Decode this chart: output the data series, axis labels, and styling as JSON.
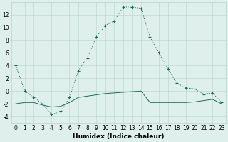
{
  "x": [
    0,
    1,
    2,
    3,
    4,
    5,
    6,
    7,
    8,
    9,
    10,
    11,
    12,
    13,
    14,
    15,
    16,
    17,
    18,
    19,
    20,
    21,
    22,
    23
  ],
  "line1_y": [
    4,
    0,
    -1,
    -2,
    -3.7,
    -3.2,
    -1.0,
    3.2,
    5.2,
    8.5,
    10.3,
    11.0,
    13.2,
    13.2,
    13.0,
    8.5,
    6.0,
    3.5,
    1.2,
    0.5,
    0.3,
    -0.5,
    -0.3,
    -1.8
  ],
  "line2_y": [
    -2.0,
    -1.8,
    -1.8,
    -2.2,
    -2.5,
    -2.4,
    -1.8,
    -1.0,
    -0.8,
    -0.6,
    -0.4,
    -0.3,
    -0.2,
    -0.1,
    0.0,
    -1.8,
    -1.8,
    -1.8,
    -1.8,
    -1.8,
    -1.7,
    -1.5,
    -1.3,
    -2.0
  ],
  "background_color": "#dff0ec",
  "line_color": "#1a6b5e",
  "grid_color": "#b8d5cc",
  "xlabel": "Humidex (Indice chaleur)",
  "xlim": [
    -0.5,
    23.5
  ],
  "ylim": [
    -5,
    14
  ],
  "yticks": [
    -4,
    -2,
    0,
    2,
    4,
    6,
    8,
    10,
    12
  ],
  "xticks": [
    0,
    1,
    2,
    3,
    4,
    5,
    6,
    7,
    8,
    9,
    10,
    11,
    12,
    13,
    14,
    15,
    16,
    17,
    18,
    19,
    20,
    21,
    22,
    23
  ],
  "xlabel_fontsize": 6.5,
  "tick_fontsize": 5.5
}
